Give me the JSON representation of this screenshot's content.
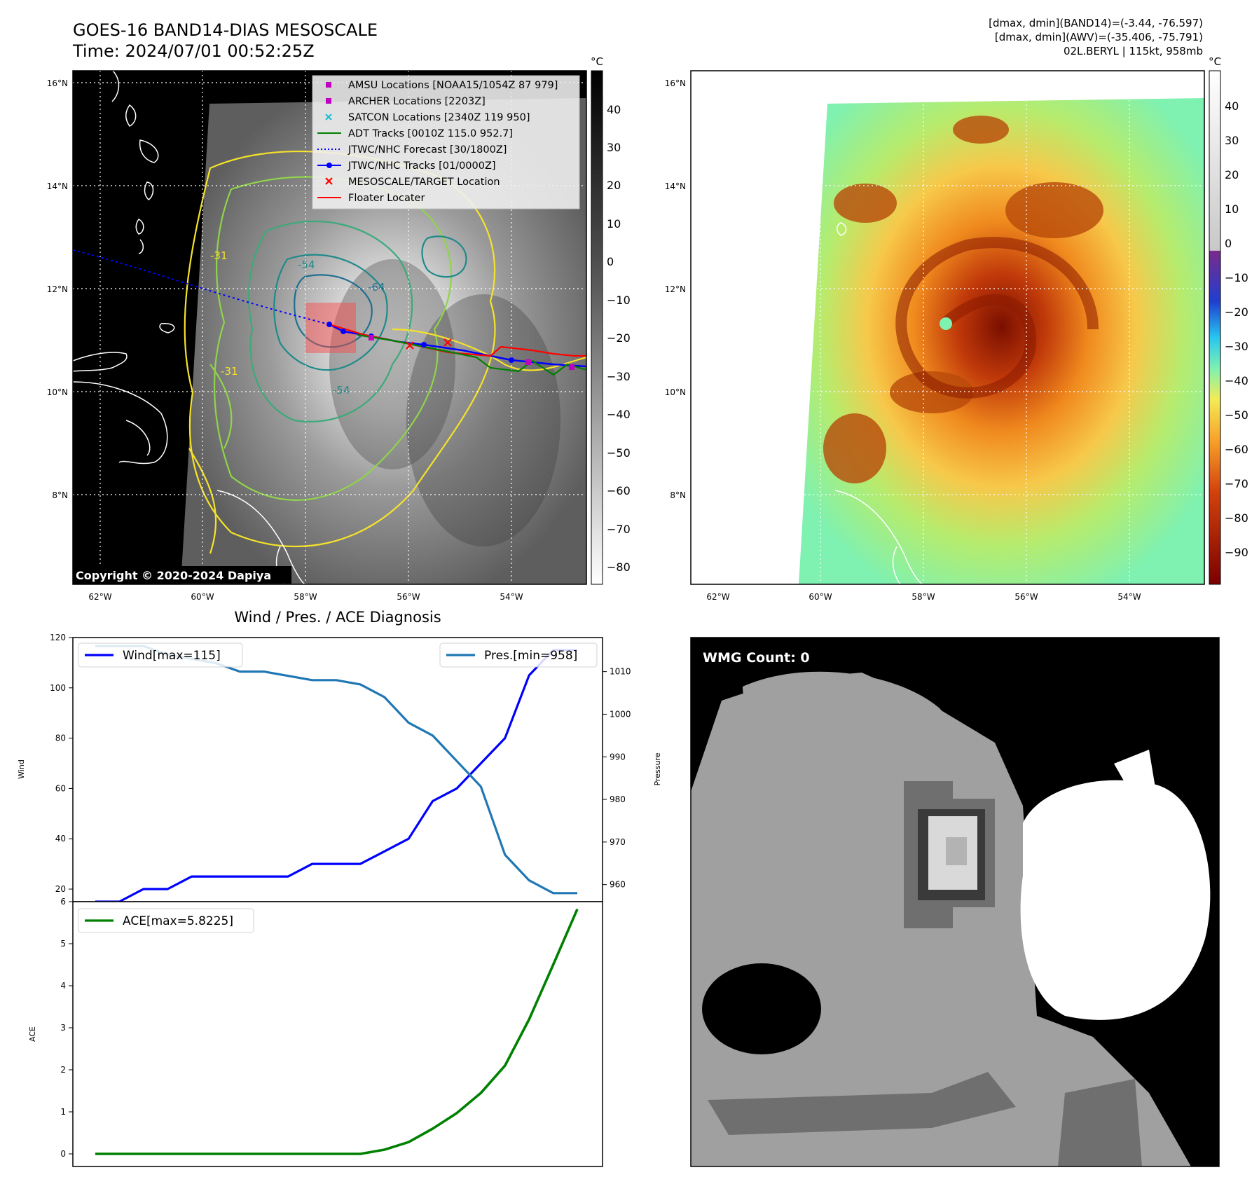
{
  "header": {
    "title": "GOES-16 BAND14-DIAS MESOSCALE",
    "time": "Time: 2024/07/01 00:52:25Z",
    "stats_band14": "[dmax, dmin](BAND14)=(-3.44, -76.597)",
    "stats_awv": "[dmax, dmin](AWV)=(-35.406, -75.791)",
    "storm": "02L.BERYL | 115kt, 958mb"
  },
  "map": {
    "lat_ticks": [
      "16°N",
      "14°N",
      "12°N",
      "10°N",
      "8°N"
    ],
    "lon_ticks": [
      "62°W",
      "60°W",
      "58°W",
      "56°W",
      "54°W"
    ],
    "copyright": "Copyright © 2020-2024 Dapiya",
    "cbar_unit": "°C",
    "cbar_left_ticks": [
      "40",
      "30",
      "20",
      "10",
      "0",
      "−10",
      "−20",
      "−30",
      "−40",
      "−50",
      "−60",
      "−70",
      "−80"
    ],
    "cbar_right_ticks": [
      "40",
      "30",
      "20",
      "10",
      "0",
      "−10",
      "−20",
      "−30",
      "−40",
      "−50",
      "−60",
      "−70",
      "−80",
      "−90"
    ],
    "contour_labels": [
      "-54",
      "-54",
      "-64",
      "-31",
      "-31"
    ],
    "legend": [
      {
        "label": "AMSU Locations [NOAA15/1054Z 87 979]",
        "color": "#c000c0",
        "marker": "square"
      },
      {
        "label": "ARCHER Locations [2203Z]",
        "color": "#c000c0",
        "marker": "square"
      },
      {
        "label": "SATCON Locations [2340Z 119 950]",
        "color": "#17becf",
        "marker": "x"
      },
      {
        "label": "ADT Tracks [0010Z 115.0 952.7]",
        "color": "#008000",
        "marker": "line"
      },
      {
        "label": "JTWC/NHC Forecast [30/1800Z]",
        "color": "#0000ff",
        "marker": "dotted"
      },
      {
        "label": "JTWC/NHC Tracks [01/0000Z]",
        "color": "#0000ff",
        "marker": "line-dot"
      },
      {
        "label": "MESOSCALE/TARGET Location",
        "color": "#ff0000",
        "marker": "x"
      },
      {
        "label": "Floater Locater",
        "color": "#ff0000",
        "marker": "line"
      }
    ]
  },
  "diag": {
    "title": "Wind / Pres. / ACE Diagnosis",
    "wind_ylabel": "Wind",
    "pres_ylabel": "Pressure",
    "ace_ylabel": "ACE",
    "wind_legend": "Wind[max=115]",
    "pres_legend": "Pres.[min=958]",
    "ace_legend": "ACE[max=5.8225]",
    "wind_color": "#0000ff",
    "pres_color": "#1f77b4",
    "ace_color": "#008000"
  },
  "wmg": {
    "label": "WMG Count: 0"
  },
  "chart_data": [
    {
      "type": "line",
      "title": "Wind / Pres. / ACE Diagnosis",
      "xlabel": "",
      "ylabel": "Wind",
      "y2label": "Pressure",
      "ylim": [
        15,
        120
      ],
      "y2lim": [
        956,
        1018
      ],
      "yticks": [
        20,
        40,
        60,
        80,
        100,
        120
      ],
      "y2ticks": [
        960,
        970,
        980,
        990,
        1000,
        1010
      ],
      "series": [
        {
          "name": "Wind[max=115]",
          "axis": "left",
          "values": [
            15,
            15,
            20,
            20,
            25,
            25,
            25,
            25,
            25,
            30,
            30,
            30,
            35,
            40,
            55,
            60,
            70,
            80,
            105,
            115,
            115
          ]
        },
        {
          "name": "Pres.[min=958]",
          "axis": "right",
          "values": [
            1016,
            1016,
            1016,
            1014,
            1013,
            1012,
            1010,
            1010,
            1009,
            1008,
            1008,
            1007,
            1004,
            998,
            995,
            989,
            983,
            967,
            961,
            958,
            958
          ]
        }
      ]
    },
    {
      "type": "line",
      "xlabel": "",
      "ylabel": "ACE",
      "ylim": [
        -0.3,
        6
      ],
      "yticks": [
        0,
        1,
        2,
        3,
        4,
        5,
        6
      ],
      "series": [
        {
          "name": "ACE[max=5.8225]",
          "values": [
            0,
            0,
            0,
            0,
            0,
            0,
            0,
            0,
            0,
            0,
            0,
            0,
            0.1,
            0.28,
            0.6,
            0.97,
            1.45,
            2.1,
            3.2,
            4.5,
            5.8225
          ]
        }
      ]
    }
  ]
}
